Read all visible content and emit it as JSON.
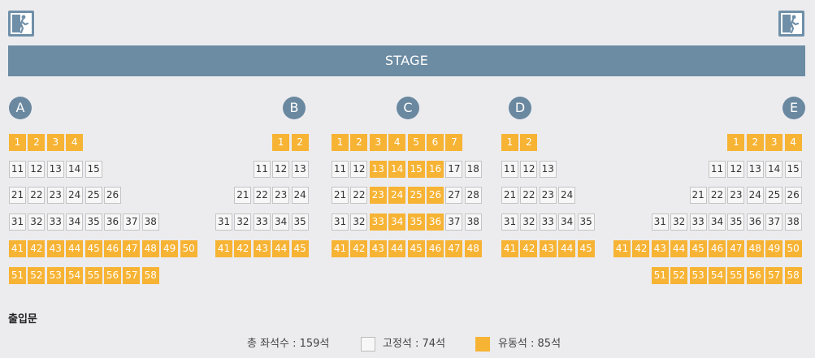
{
  "stage": {
    "label": "STAGE"
  },
  "sections": [
    "A",
    "B",
    "C",
    "D",
    "E"
  ],
  "entrance_label": "출입문",
  "legend": {
    "total": "총 좌석수 : 159석",
    "fixed": "고정석 : 74석",
    "movable": "유동석 : 85석"
  },
  "colors": {
    "movable_seat": "#f7b334",
    "fixed_seat": "#f7f7f7",
    "stage": "#6c8ca3",
    "section_badge": "#6a88a0"
  },
  "seat_blocks": [
    {
      "section": "A",
      "rows": [
        {
          "seats": [
            1,
            2,
            3,
            4
          ],
          "movable": [
            1,
            2,
            3,
            4
          ]
        },
        {
          "seats": [
            11,
            12,
            13,
            14,
            15
          ],
          "movable": []
        },
        {
          "seats": [
            21,
            22,
            23,
            24,
            25,
            26
          ],
          "movable": []
        },
        {
          "seats": [
            31,
            32,
            33,
            34,
            35,
            36,
            37,
            38
          ],
          "movable": []
        },
        {
          "seats": [
            41,
            42,
            43,
            44,
            45,
            46,
            47,
            48,
            49,
            50
          ],
          "movable": [
            41,
            42,
            43,
            44,
            45,
            46,
            47,
            48,
            49,
            50
          ]
        },
        {
          "seats": [
            51,
            52,
            53,
            54,
            55,
            56,
            57,
            58
          ],
          "movable": [
            51,
            52,
            53,
            54,
            55,
            56,
            57,
            58
          ]
        }
      ]
    },
    {
      "section": "B",
      "rows": [
        {
          "seats": [
            1,
            2
          ],
          "movable": [
            1,
            2
          ]
        },
        {
          "seats": [
            11,
            12,
            13
          ],
          "movable": []
        },
        {
          "seats": [
            21,
            22,
            23,
            24
          ],
          "movable": []
        },
        {
          "seats": [
            31,
            32,
            33,
            34,
            35
          ],
          "movable": []
        },
        {
          "seats": [
            41,
            42,
            43,
            44,
            45
          ],
          "movable": [
            41,
            42,
            43,
            44,
            45
          ]
        }
      ]
    },
    {
      "section": "C",
      "rows": [
        {
          "seats": [
            1,
            2,
            3,
            4,
            5,
            6,
            7
          ],
          "movable": [
            1,
            2,
            3,
            4,
            5,
            6,
            7
          ]
        },
        {
          "seats": [
            11,
            12,
            13,
            14,
            15,
            16,
            17,
            18
          ],
          "movable": [
            13,
            14,
            15,
            16
          ]
        },
        {
          "seats": [
            21,
            22,
            23,
            24,
            25,
            26,
            27,
            28
          ],
          "movable": [
            23,
            24,
            25,
            26
          ]
        },
        {
          "seats": [
            31,
            32,
            33,
            34,
            35,
            36,
            37,
            38
          ],
          "movable": [
            33,
            34,
            35,
            36
          ]
        },
        {
          "seats": [
            41,
            42,
            43,
            44,
            45,
            46,
            47,
            48
          ],
          "movable": [
            41,
            42,
            43,
            44,
            45,
            46,
            47,
            48
          ]
        }
      ]
    },
    {
      "section": "D",
      "rows": [
        {
          "seats": [
            1,
            2
          ],
          "movable": [
            1,
            2
          ]
        },
        {
          "seats": [
            11,
            12,
            13
          ],
          "movable": []
        },
        {
          "seats": [
            21,
            22,
            23,
            24
          ],
          "movable": []
        },
        {
          "seats": [
            31,
            32,
            33,
            34,
            35
          ],
          "movable": []
        },
        {
          "seats": [
            41,
            42,
            43,
            44,
            45
          ],
          "movable": [
            41,
            42,
            43,
            44,
            45
          ]
        }
      ]
    },
    {
      "section": "E",
      "rows": [
        {
          "seats": [
            1,
            2,
            3,
            4
          ],
          "movable": [
            1,
            2,
            3,
            4
          ]
        },
        {
          "seats": [
            11,
            12,
            13,
            14,
            15
          ],
          "movable": []
        },
        {
          "seats": [
            21,
            22,
            23,
            24,
            25,
            26
          ],
          "movable": []
        },
        {
          "seats": [
            31,
            32,
            33,
            34,
            35,
            36,
            37,
            38
          ],
          "movable": []
        },
        {
          "seats": [
            41,
            42,
            43,
            44,
            45,
            46,
            47,
            48,
            49,
            50
          ],
          "movable": [
            41,
            42,
            43,
            44,
            45,
            46,
            47,
            48,
            49,
            50
          ]
        },
        {
          "seats": [
            51,
            52,
            53,
            54,
            55,
            56,
            57,
            58
          ],
          "movable": [
            51,
            52,
            53,
            54,
            55,
            56,
            57,
            58
          ]
        }
      ]
    }
  ]
}
